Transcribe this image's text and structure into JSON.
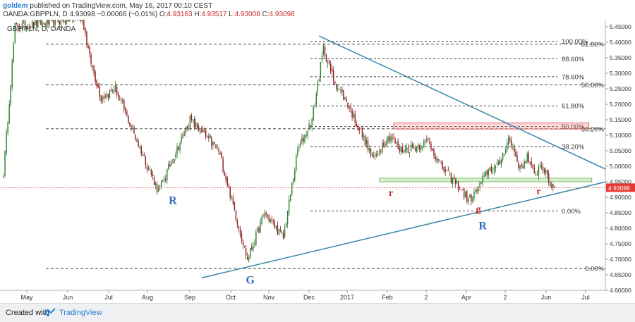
{
  "header": {
    "author": "goldem",
    "published": "published on TradingView.com, May 16, 2017 00:10 CEST",
    "symbol": "OANDA:GBPPLN, D",
    "last": "4.93098",
    "change": "−0.00066 (−0.01%)",
    "o_label": "O:",
    "o": "4.93163",
    "h_label": "H:",
    "h": "4.93517",
    "l_label": "L:",
    "l": "4.93008",
    "c_label": "C:",
    "c": "4.93098"
  },
  "footer": {
    "created_with": "Created with",
    "brand": "TradingView"
  },
  "colors": {
    "up": "#2e7d32",
    "down": "#8b1e1e",
    "trend": "#3a86a8",
    "fib": "#444444",
    "support": "#7cc36a",
    "resistance": "#e06a6a",
    "price": "#e53935",
    "letters_blue": "#2f6fb8",
    "letters_red": "#c62828"
  },
  "chart_data": {
    "type": "candlestick",
    "title": "GBP/PLN, D, OANDA",
    "x_labels": [
      "May",
      "Jun",
      "Jul",
      "Aug",
      "Sep",
      "Oct",
      "Nov",
      "Dec",
      "2017",
      "Feb",
      "2",
      "Apr",
      "2",
      "Jun",
      "Jul"
    ],
    "y_ticks": [
      "5.45000",
      "5.40000",
      "5.35000",
      "5.30000",
      "5.25000",
      "5.20000",
      "5.15000",
      "5.10000",
      "5.05000",
      "5.00000",
      "4.95000",
      "4.90000",
      "4.85000",
      "4.80000",
      "4.75000",
      "4.70000",
      "4.65000",
      "4.60000"
    ],
    "ylim": [
      4.6,
      5.45
    ],
    "last_price": "4.93098",
    "grid": false,
    "series_waypoints": [
      [
        0,
        4.98
      ],
      [
        8,
        5.45
      ],
      [
        55,
        5.48
      ],
      [
        60,
        5.35
      ],
      [
        68,
        5.22
      ],
      [
        78,
        5.25
      ],
      [
        95,
        5.06
      ],
      [
        108,
        4.92
      ],
      [
        130,
        5.15
      ],
      [
        150,
        5.05
      ],
      [
        170,
        4.7
      ],
      [
        182,
        4.85
      ],
      [
        195,
        4.77
      ],
      [
        205,
        5.05
      ],
      [
        215,
        5.15
      ],
      [
        223,
        5.38
      ],
      [
        230,
        5.28
      ],
      [
        240,
        5.2
      ],
      [
        258,
        5.02
      ],
      [
        265,
        5.08
      ],
      [
        270,
        5.1
      ],
      [
        276,
        5.05
      ],
      [
        285,
        5.06
      ],
      [
        296,
        5.08
      ],
      [
        305,
        5.0
      ],
      [
        318,
        4.93
      ],
      [
        324,
        4.89
      ],
      [
        330,
        4.92
      ],
      [
        338,
        4.99
      ],
      [
        345,
        5.0
      ],
      [
        352,
        5.09
      ],
      [
        356,
        5.05
      ],
      [
        360,
        4.99
      ],
      [
        365,
        5.03
      ],
      [
        370,
        4.97
      ],
      [
        375,
        5.01
      ],
      [
        380,
        4.95
      ],
      [
        384,
        4.93
      ]
    ],
    "fibonacci_left": [
      {
        "label": "61.80%",
        "price": 5.394
      },
      {
        "label": "50.00%",
        "price": 5.263
      },
      {
        "label": "38.20%",
        "price": 5.121
      },
      {
        "label": "0.00%",
        "price": 4.67
      }
    ],
    "fibonacci_right": [
      {
        "label": "100.00%",
        "price": 5.403
      },
      {
        "label": "88.60%",
        "price": 5.347
      },
      {
        "label": "78.60%",
        "price": 5.289
      },
      {
        "label": "61.80%",
        "price": 5.195
      },
      {
        "label": "50.00%",
        "price": 5.128
      },
      {
        "label": "38.20%",
        "price": 5.064
      },
      {
        "label": "0.00%",
        "price": 4.856
      }
    ],
    "trendlines": [
      {
        "name": "descending",
        "x1": 220,
        "y1": 5.42,
        "x2": 420,
        "y2": 4.99
      },
      {
        "name": "ascending",
        "x1": 138,
        "y1": 4.64,
        "x2": 420,
        "y2": 4.95
      }
    ],
    "zones": [
      {
        "name": "resistance",
        "x1": 272,
        "x2": 408,
        "y1": 5.12,
        "y2": 5.14
      },
      {
        "name": "support",
        "x1": 262,
        "x2": 410,
        "y1": 4.95,
        "y2": 4.962
      }
    ],
    "annotations": [
      {
        "text": "R",
        "x": 118,
        "price": 4.878,
        "color": "blue"
      },
      {
        "text": "G",
        "x": 172,
        "price": 4.622,
        "color": "blue"
      },
      {
        "text": "r",
        "x": 270,
        "price": 4.905,
        "color": "red"
      },
      {
        "text": "g",
        "x": 331,
        "price": 4.852,
        "color": "red"
      },
      {
        "text": "R",
        "x": 334,
        "price": 4.797,
        "color": "blue"
      },
      {
        "text": "r",
        "x": 373,
        "price": 4.91,
        "color": "red"
      }
    ]
  }
}
